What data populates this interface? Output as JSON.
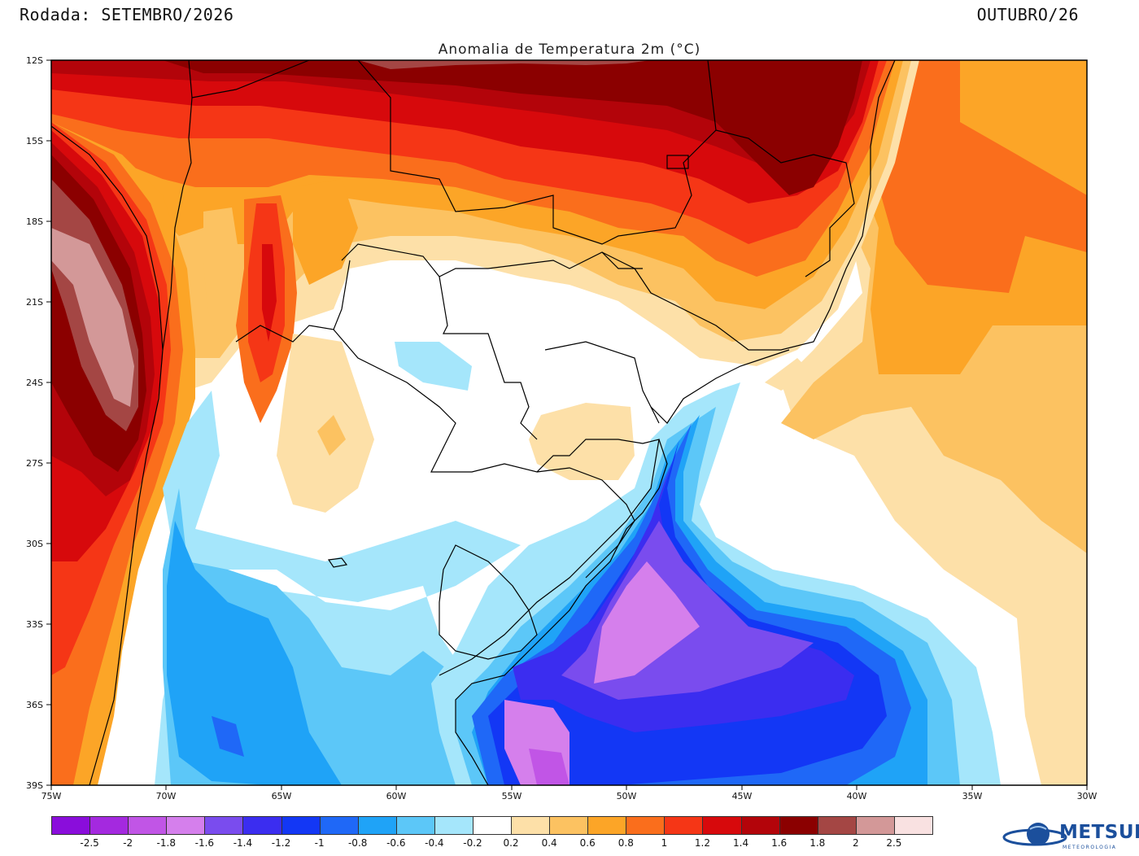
{
  "header": {
    "run_label": "Rodada: SETEMBRO/2026",
    "target_label": "OUTUBRO/26",
    "title": "Anomalia de Temperatura 2m (°C)"
  },
  "map": {
    "lon_range": [
      -75,
      -30
    ],
    "lat_range": [
      -39,
      -12
    ],
    "lat_ticks": [
      "12S",
      "15S",
      "18S",
      "21S",
      "24S",
      "27S",
      "30S",
      "33S",
      "36S",
      "39S"
    ],
    "lon_ticks": [
      "75W",
      "70W",
      "65W",
      "60W",
      "55W",
      "50W",
      "45W",
      "40W",
      "35W",
      "30W"
    ],
    "regions": [
      {
        "name": "strong-warm-north-brazil",
        "anomaly": "1.6 to 2.0"
      },
      {
        "name": "andes-warm-west",
        "anomaly": "above 1.8"
      },
      {
        "name": "atlantic-warm-east",
        "anomaly": "0.6 to 1.0"
      },
      {
        "name": "near-normal-paraguay-brazil-south",
        "anomaly": "-0.2 to 0.2"
      },
      {
        "name": "cold-rio-grande-do-sul-uruguay-ocean",
        "anomaly": "-1.0 to -1.8"
      },
      {
        "name": "cold-argentina-pampas",
        "anomaly": "-0.4 to -1.0"
      }
    ]
  },
  "legend": {
    "colors": [
      "#8a0ddb",
      "#a429df",
      "#c155e6",
      "#d57fec",
      "#7a4cee",
      "#3b2df0",
      "#1337f5",
      "#1f68f7",
      "#1fa3f7",
      "#5cc7f8",
      "#a5e6fb",
      "#ffffff",
      "#fde0a8",
      "#fcc261",
      "#fca527",
      "#fa6e1c",
      "#f53616",
      "#d7090c",
      "#b3040a",
      "#8b0000",
      "#a44644",
      "#d39898",
      "#f9e1e1"
    ],
    "labels": [
      "-2.5",
      "-2",
      "-1.8",
      "-1.6",
      "-1.4",
      "-1.2",
      "-1",
      "-0.8",
      "-0.6",
      "-0.4",
      "-0.2",
      "0.2",
      "0.4",
      "0.6",
      "0.8",
      "1",
      "1.2",
      "1.4",
      "1.6",
      "1.8",
      "2",
      "2.5"
    ]
  },
  "logo": {
    "name": "METSUL",
    "subtitle": "METEOROLOGIA"
  }
}
